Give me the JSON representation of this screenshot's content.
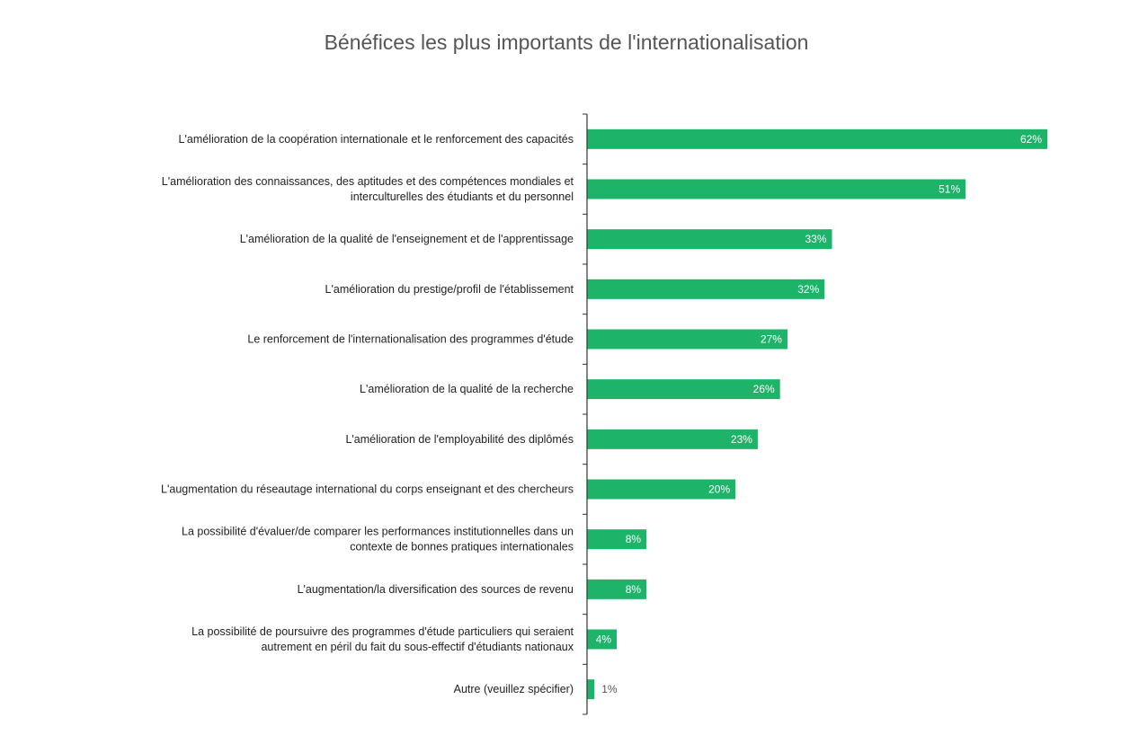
{
  "chart_data": {
    "type": "bar",
    "orientation": "horizontal",
    "title": "Bénéfices les plus importants de l'internationalisation",
    "xlabel": "",
    "ylabel": "",
    "grid": false,
    "bar_color": "#1db46a",
    "categories": [
      "L'amélioration de la coopération internationale et le renforcement des capacités",
      "L'amélioration des connaissances, des aptitudes et des compétences mondiales et interculturelles des étudiants et du personnel",
      "L'amélioration de la qualité de l'enseignement et de l'apprentissage",
      "L'amélioration du prestige/profil de l'établissement",
      "Le renforcement de l'internationalisation des programmes d'étude",
      "L'amélioration de la qualité de la recherche",
      "L'amélioration de l'employabilité des diplômés",
      "L'augmentation du réseautage international du corps enseignant et des chercheurs",
      "La possibilité d'évaluer/de comparer les performances institutionnelles dans un contexte de bonnes pratiques internationales",
      "L'augmentation/la diversification des sources de revenu",
      "La possibilité de poursuivre des programmes d'étude particuliers qui seraient autrement en péril du fait du sous-effectif d'étudiants nationaux",
      "Autre (veuillez spécifier)"
    ],
    "category_lines": [
      [
        "L'amélioration de la coopération internationale et le renforcement des capacités"
      ],
      [
        "L'amélioration des connaissances, des aptitudes et des compétences mondiales et",
        "interculturelles des étudiants et du personnel"
      ],
      [
        "L'amélioration de la qualité de l'enseignement et de l'apprentissage"
      ],
      [
        "L'amélioration du prestige/profil de l'établissement"
      ],
      [
        "Le renforcement de l'internationalisation des programmes d'étude"
      ],
      [
        "L'amélioration de la qualité de la recherche"
      ],
      [
        "L'amélioration de l'employabilité des diplômés"
      ],
      [
        "L'augmentation du réseautage international du corps enseignant et des chercheurs"
      ],
      [
        "La possibilité d'évaluer/de comparer les performances institutionnelles dans un",
        "contexte de bonnes pratiques internationales"
      ],
      [
        "L'augmentation/la diversification des sources de revenu"
      ],
      [
        "La possibilité de poursuivre des programmes d'étude particuliers qui seraient",
        "autrement en péril du fait du sous-effectif d'étudiants nationaux"
      ],
      [
        "Autre (veuillez spécifier)"
      ]
    ],
    "values": [
      62,
      51,
      33,
      32,
      27,
      26,
      23,
      20,
      8,
      8,
      4,
      1
    ],
    "value_labels": [
      "62%",
      "51%",
      "33%",
      "32%",
      "27%",
      "26%",
      "23%",
      "20%",
      "8%",
      "8%",
      "4%",
      "1%"
    ],
    "xlim": [
      0,
      62
    ]
  }
}
